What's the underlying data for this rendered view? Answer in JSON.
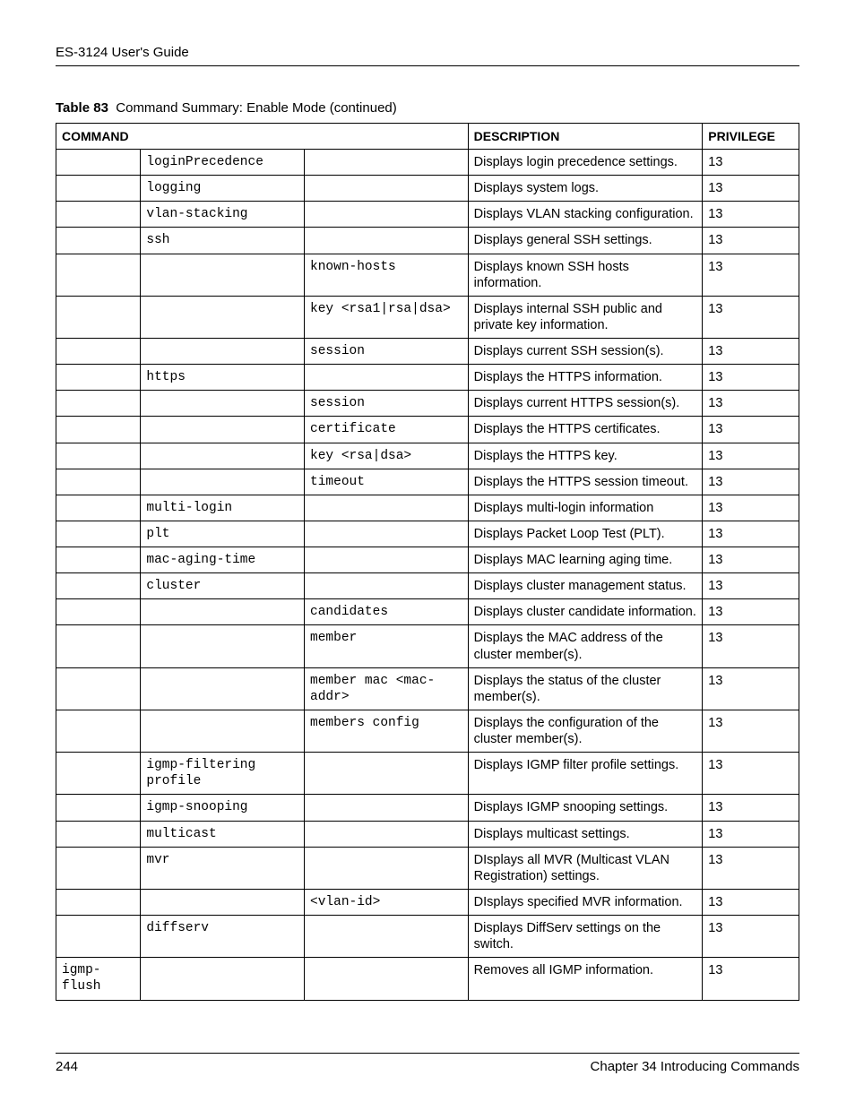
{
  "header": {
    "guide_title": "ES-3124 User's Guide"
  },
  "caption": {
    "label": "Table 83",
    "title": "Command Summary: Enable Mode  (continued)"
  },
  "columns": {
    "c1": "COMMAND",
    "c2": "DESCRIPTION",
    "c3": "PRIVILEGE"
  },
  "rows": [
    {
      "cmd1": "",
      "cmd2": "loginPrecedence",
      "cmd3": "",
      "desc": "Displays login precedence settings.",
      "priv": "13"
    },
    {
      "cmd1": "",
      "cmd2": "logging",
      "cmd3": "",
      "desc": "Displays system logs.",
      "priv": "13"
    },
    {
      "cmd1": "",
      "cmd2": "vlan-stacking",
      "cmd3": "",
      "desc": "Displays VLAN stacking configuration.",
      "priv": "13"
    },
    {
      "cmd1": "",
      "cmd2": "ssh",
      "cmd3": "",
      "desc": "Displays general SSH settings.",
      "priv": "13"
    },
    {
      "cmd1": "",
      "cmd2": "",
      "cmd3": "known-hosts",
      "desc": "Displays known SSH hosts information.",
      "priv": "13"
    },
    {
      "cmd1": "",
      "cmd2": "",
      "cmd3": "key <rsa1|rsa|dsa>",
      "desc": "Displays internal SSH public and private key information.",
      "priv": "13"
    },
    {
      "cmd1": "",
      "cmd2": "",
      "cmd3": "session",
      "desc": "Displays current SSH session(s).",
      "priv": "13"
    },
    {
      "cmd1": "",
      "cmd2": "https",
      "cmd3": "",
      "desc": "Displays the HTTPS information.",
      "priv": "13"
    },
    {
      "cmd1": "",
      "cmd2": "",
      "cmd3": "session",
      "desc": "Displays current HTTPS session(s).",
      "priv": "13"
    },
    {
      "cmd1": "",
      "cmd2": "",
      "cmd3": "certificate",
      "desc": "Displays the HTTPS certificates.",
      "priv": "13"
    },
    {
      "cmd1": "",
      "cmd2": "",
      "cmd3": "key <rsa|dsa>",
      "desc": "Displays the HTTPS key.",
      "priv": "13"
    },
    {
      "cmd1": "",
      "cmd2": "",
      "cmd3": "timeout",
      "desc": "Displays the HTTPS session timeout.",
      "priv": "13"
    },
    {
      "cmd1": "",
      "cmd2": "multi-login",
      "cmd3": "",
      "desc": "Displays multi-login information",
      "priv": "13"
    },
    {
      "cmd1": "",
      "cmd2": "plt",
      "cmd3": "",
      "desc": "Displays Packet Loop Test (PLT).",
      "priv": "13"
    },
    {
      "cmd1": "",
      "cmd2": "mac-aging-time",
      "cmd3": "",
      "desc": "Displays MAC learning aging time.",
      "priv": "13"
    },
    {
      "cmd1": "",
      "cmd2": "cluster",
      "cmd3": "",
      "desc": "Displays cluster management status.",
      "priv": "13"
    },
    {
      "cmd1": "",
      "cmd2": "",
      "cmd3": "candidates",
      "desc": "Displays cluster candidate information.",
      "priv": "13"
    },
    {
      "cmd1": "",
      "cmd2": "",
      "cmd3": "member",
      "desc": "Displays the MAC address of the cluster member(s).",
      "priv": "13"
    },
    {
      "cmd1": "",
      "cmd2": "",
      "cmd3": "member mac <mac-addr>",
      "desc": "Displays the status of the cluster member(s).",
      "priv": "13"
    },
    {
      "cmd1": "",
      "cmd2": "",
      "cmd3": "members config",
      "desc": "Displays the configuration of the cluster member(s).",
      "priv": "13"
    },
    {
      "cmd1": "",
      "cmd2": "igmp-filtering profile",
      "cmd3": "",
      "desc": "Displays IGMP filter profile settings.",
      "priv": "13"
    },
    {
      "cmd1": "",
      "cmd2": "igmp-snooping",
      "cmd3": "",
      "desc": "Displays IGMP snooping settings.",
      "priv": "13"
    },
    {
      "cmd1": "",
      "cmd2": "multicast",
      "cmd3": "",
      "desc": "Displays multicast settings.",
      "priv": "13"
    },
    {
      "cmd1": "",
      "cmd2": "mvr",
      "cmd3": "",
      "desc": "DIsplays all MVR (Multicast VLAN Registration) settings.",
      "priv": "13"
    },
    {
      "cmd1": "",
      "cmd2": "",
      "cmd3": "<vlan-id>",
      "desc": "DIsplays specified MVR information.",
      "priv": "13"
    },
    {
      "cmd1": "",
      "cmd2": "diffserv",
      "cmd3": "",
      "desc": "Displays DiffServ settings on the switch.",
      "priv": "13"
    },
    {
      "cmd1": "igmp-flush",
      "cmd2": "",
      "cmd3": "",
      "desc": "Removes all IGMP information.",
      "priv": "13"
    }
  ],
  "footer": {
    "page_num": "244",
    "chapter": "Chapter 34 Introducing Commands"
  }
}
